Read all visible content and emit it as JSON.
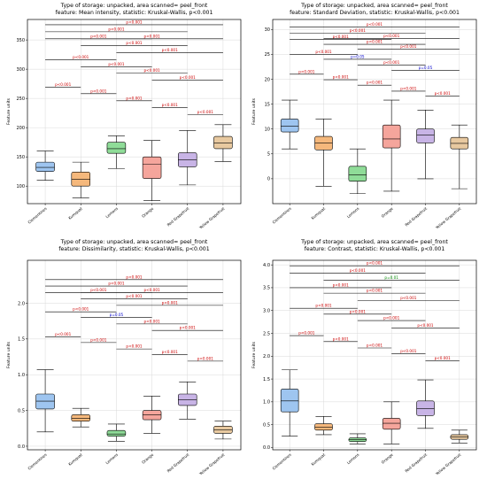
{
  "chart_data": [
    {
      "type": "box",
      "title_line1": "Type of storage: unpacked, area scanned= peel_front",
      "title_line2": "feature: Mean intensity, statistic: Kruskal-Wallis, p<0.001",
      "ylabel": "Feature units",
      "ylim": [
        70,
        385
      ],
      "yticks": [
        100,
        150,
        200,
        250,
        300,
        350
      ],
      "grid": true,
      "categories": [
        "Clementines",
        "Kumquat",
        "Lemons",
        "Orange",
        "Red Grapefruit",
        "Yellow Grapefruit"
      ],
      "colors": [
        "#9ec5f0",
        "#f5b87c",
        "#8fdc98",
        "#f5a59c",
        "#c8b4e6",
        "#e8c9a0"
      ],
      "boxes": [
        {
          "whislo": 110,
          "q1": 125,
          "med": 132,
          "q3": 141,
          "whishi": 160
        },
        {
          "whislo": 80,
          "q1": 100,
          "med": 112,
          "q3": 124,
          "whishi": 141
        },
        {
          "whislo": 130,
          "q1": 156,
          "med": 164,
          "q3": 175,
          "whishi": 186
        },
        {
          "whislo": 75,
          "q1": 113,
          "med": 137,
          "q3": 150,
          "whishi": 178
        },
        {
          "whislo": 102,
          "q1": 133,
          "med": 145,
          "q3": 157,
          "whishi": 195
        },
        {
          "whislo": 142,
          "q1": 164,
          "med": 174,
          "q3": 185,
          "whishi": 205
        }
      ],
      "annotations": [
        {
          "i": 0,
          "j": 1,
          "y": 269,
          "label": "p<0.001",
          "color": "#cc0000"
        },
        {
          "i": 1,
          "j": 2,
          "y": 258,
          "label": "p<0.001",
          "color": "#cc0000"
        },
        {
          "i": 2,
          "j": 3,
          "y": 246,
          "label": "p<0.001",
          "color": "#cc0000"
        },
        {
          "i": 3,
          "j": 4,
          "y": 234,
          "label": "p<0.001",
          "color": "#cc0000"
        },
        {
          "i": 4,
          "j": 5,
          "y": 222,
          "label": "p<0.001",
          "color": "#cc0000"
        },
        {
          "i": 0,
          "j": 2,
          "y": 316,
          "label": "p<0.001",
          "color": "#cc0000"
        },
        {
          "i": 1,
          "j": 3,
          "y": 304,
          "label": "p<0.001",
          "color": "#cc0000"
        },
        {
          "i": 2,
          "j": 4,
          "y": 293,
          "label": "p<0.001",
          "color": "#cc0000"
        },
        {
          "i": 3,
          "j": 5,
          "y": 281,
          "label": "p<0.001",
          "color": "#cc0000"
        },
        {
          "i": 0,
          "j": 3,
          "y": 352,
          "label": "p<0.001",
          "color": "#cc0000"
        },
        {
          "i": 1,
          "j": 4,
          "y": 340,
          "label": "p<0.001",
          "color": "#cc0000"
        },
        {
          "i": 2,
          "j": 5,
          "y": 328,
          "label": "p<0.001",
          "color": "#cc0000"
        },
        {
          "i": 0,
          "j": 4,
          "y": 364,
          "label": "p<0.001",
          "color": "#cc0000"
        },
        {
          "i": 1,
          "j": 5,
          "y": 352,
          "label": "p<0.001",
          "color": "#cc0000"
        },
        {
          "i": 0,
          "j": 5,
          "y": 376,
          "label": "p<0.001",
          "color": "#cc0000"
        }
      ]
    },
    {
      "type": "box",
      "title_line1": "Type of storage: unpacked, area scanned= peel_front",
      "title_line2": "feature: Standard Deviation, statistic: Kruskal-Wallis, p<0.001",
      "ylabel": "Feature units",
      "ylim": [
        -5,
        32
      ],
      "yticks": [
        0,
        5,
        10,
        15,
        20,
        25,
        30
      ],
      "grid": true,
      "categories": [
        "Clementines",
        "Kumquat",
        "Lemons",
        "Orange",
        "Red Grapefruit",
        "Yellow Grapefruit"
      ],
      "colors": [
        "#9ec5f0",
        "#f5b87c",
        "#8fdc98",
        "#f5a59c",
        "#c8b4e6",
        "#e8c9a0"
      ],
      "boxes": [
        {
          "whislo": 6,
          "q1": 9.4,
          "med": 10.6,
          "q3": 12,
          "whishi": 15.8
        },
        {
          "whislo": -1.5,
          "q1": 5.8,
          "med": 7.2,
          "q3": 8.5,
          "whishi": 12
        },
        {
          "whislo": -3,
          "q1": -0.5,
          "med": 0.8,
          "q3": 2.5,
          "whishi": 6
        },
        {
          "whislo": -2.5,
          "q1": 6.2,
          "med": 8,
          "q3": 10.8,
          "whishi": 15.8
        },
        {
          "whislo": 0,
          "q1": 7.2,
          "med": 8.8,
          "q3": 10,
          "whishi": 13.8
        },
        {
          "whislo": -2,
          "q1": 6,
          "med": 7.1,
          "q3": 8.3,
          "whishi": 10.8
        }
      ],
      "annotations": [
        {
          "i": 0,
          "j": 1,
          "y": 21,
          "label": "p<0.001",
          "color": "#cc0000"
        },
        {
          "i": 1,
          "j": 2,
          "y": 19.9,
          "label": "p<0.001",
          "color": "#cc0000"
        },
        {
          "i": 2,
          "j": 3,
          "y": 18.8,
          "label": "p<0.001",
          "color": "#cc0000"
        },
        {
          "i": 3,
          "j": 4,
          "y": 17.6,
          "label": "p<0.001",
          "color": "#cc0000"
        },
        {
          "i": 4,
          "j": 5,
          "y": 16.6,
          "label": "p<0.001",
          "color": "#cc0000"
        },
        {
          "i": 0,
          "j": 2,
          "y": 25,
          "label": "p<0.001",
          "color": "#cc0000"
        },
        {
          "i": 1,
          "j": 3,
          "y": 24,
          "label": "p=0.05",
          "color": "#0000cc"
        },
        {
          "i": 2,
          "j": 4,
          "y": 22.8,
          "label": "p<0.001",
          "color": "#cc0000"
        },
        {
          "i": 3,
          "j": 5,
          "y": 21.8,
          "label": "p=0.05",
          "color": "#0000cc"
        },
        {
          "i": 0,
          "j": 3,
          "y": 28,
          "label": "p<0.001",
          "color": "#cc0000"
        },
        {
          "i": 1,
          "j": 4,
          "y": 27,
          "label": "p<0.001",
          "color": "#cc0000"
        },
        {
          "i": 2,
          "j": 5,
          "y": 26,
          "label": "p<0.001",
          "color": "#cc0000"
        },
        {
          "i": 0,
          "j": 4,
          "y": 29.2,
          "label": "p<0.001",
          "color": "#cc0000"
        },
        {
          "i": 1,
          "j": 5,
          "y": 28.2,
          "label": "p<0.001",
          "color": "#cc0000"
        },
        {
          "i": 0,
          "j": 5,
          "y": 30.5,
          "label": "p<0.001",
          "color": "#cc0000"
        }
      ]
    },
    {
      "type": "box",
      "title_line1": "Type of storage: unpacked, area scanned= peel_front",
      "title_line2": "feature: Dissimilarity, statistic: Kruskal-Wallis, p<0.001",
      "ylabel": "Feature units",
      "ylim": [
        -0.05,
        2.6
      ],
      "yticks": [
        0.0,
        0.5,
        1.0,
        1.5,
        2.0
      ],
      "grid": true,
      "categories": [
        "Clementines",
        "Kumquat",
        "Lemons",
        "Orange",
        "Red Grapefruit",
        "Yellow Grapefruit"
      ],
      "colors": [
        "#9ec5f0",
        "#f5b87c",
        "#8fdc98",
        "#f5a59c",
        "#c8b4e6",
        "#e8c9a0"
      ],
      "boxes": [
        {
          "whislo": 0.2,
          "q1": 0.52,
          "med": 0.63,
          "q3": 0.73,
          "whishi": 1.07
        },
        {
          "whislo": 0.27,
          "q1": 0.35,
          "med": 0.39,
          "q3": 0.44,
          "whishi": 0.53
        },
        {
          "whislo": 0.07,
          "q1": 0.14,
          "med": 0.17,
          "q3": 0.22,
          "whishi": 0.31
        },
        {
          "whislo": 0.18,
          "q1": 0.37,
          "med": 0.44,
          "q3": 0.5,
          "whishi": 0.7
        },
        {
          "whislo": 0.38,
          "q1": 0.57,
          "med": 0.65,
          "q3": 0.73,
          "whishi": 0.9
        },
        {
          "whislo": 0.1,
          "q1": 0.18,
          "med": 0.23,
          "q3": 0.28,
          "whishi": 0.35
        }
      ],
      "annotations": [
        {
          "i": 0,
          "j": 1,
          "y": 1.53,
          "label": "p<0.001",
          "color": "#cc0000"
        },
        {
          "i": 1,
          "j": 2,
          "y": 1.45,
          "label": "p<0.001",
          "color": "#cc0000"
        },
        {
          "i": 2,
          "j": 3,
          "y": 1.36,
          "label": "p<0.001",
          "color": "#cc0000"
        },
        {
          "i": 3,
          "j": 4,
          "y": 1.28,
          "label": "p<0.001",
          "color": "#cc0000"
        },
        {
          "i": 4,
          "j": 5,
          "y": 1.19,
          "label": "p<0.001",
          "color": "#cc0000"
        },
        {
          "i": 0,
          "j": 2,
          "y": 1.88,
          "label": "p<0.001",
          "color": "#cc0000"
        },
        {
          "i": 1,
          "j": 3,
          "y": 1.8,
          "label": "p=0.05",
          "color": "#0000cc"
        },
        {
          "i": 2,
          "j": 4,
          "y": 1.71,
          "label": "p<0.001",
          "color": "#cc0000"
        },
        {
          "i": 3,
          "j": 5,
          "y": 1.62,
          "label": "p<0.001",
          "color": "#cc0000"
        },
        {
          "i": 0,
          "j": 3,
          "y": 2.15,
          "label": "p<0.001",
          "color": "#cc0000"
        },
        {
          "i": 1,
          "j": 4,
          "y": 2.06,
          "label": "p<0.001",
          "color": "#cc0000"
        },
        {
          "i": 2,
          "j": 5,
          "y": 1.97,
          "label": "p<0.001",
          "color": "#cc0000"
        },
        {
          "i": 0,
          "j": 4,
          "y": 2.24,
          "label": "p<0.001",
          "color": "#cc0000"
        },
        {
          "i": 1,
          "j": 5,
          "y": 2.15,
          "label": "p<0.001",
          "color": "#cc0000"
        },
        {
          "i": 0,
          "j": 5,
          "y": 2.33,
          "label": "p<0.001",
          "color": "#cc0000"
        }
      ]
    },
    {
      "type": "box",
      "title_line1": "Type of storage: unpacked, area scanned= peel_front",
      "title_line2": "feature: Contrast, statistic: Kruskal-Wallis, p<0.001",
      "ylabel": "Feature units",
      "ylim": [
        -0.05,
        4.1
      ],
      "yticks": [
        0.0,
        0.5,
        1.0,
        1.5,
        2.0,
        2.5,
        3.0,
        3.5,
        4.0
      ],
      "grid": true,
      "categories": [
        "Clementines",
        "Kumquat",
        "Lemons",
        "Orange",
        "Red Grapefruit",
        "Yellow Grapefruit"
      ],
      "colors": [
        "#9ec5f0",
        "#f5b87c",
        "#8fdc98",
        "#f5a59c",
        "#c8b4e6",
        "#e8c9a0"
      ],
      "boxes": [
        {
          "whislo": 0.25,
          "q1": 0.78,
          "med": 1.02,
          "q3": 1.28,
          "whishi": 1.7
        },
        {
          "whislo": 0.28,
          "q1": 0.38,
          "med": 0.44,
          "q3": 0.52,
          "whishi": 0.68
        },
        {
          "whislo": 0.08,
          "q1": 0.13,
          "med": 0.17,
          "q3": 0.21,
          "whishi": 0.3
        },
        {
          "whislo": 0.08,
          "q1": 0.4,
          "med": 0.53,
          "q3": 0.64,
          "whishi": 1.0
        },
        {
          "whislo": 0.42,
          "q1": 0.7,
          "med": 0.85,
          "q3": 1.02,
          "whishi": 1.48
        },
        {
          "whislo": 0.1,
          "q1": 0.18,
          "med": 0.23,
          "q3": 0.28,
          "whishi": 0.38
        }
      ],
      "annotations": [
        {
          "i": 0,
          "j": 1,
          "y": 2.45,
          "label": "p<0.001",
          "color": "#cc0000"
        },
        {
          "i": 1,
          "j": 2,
          "y": 2.32,
          "label": "p<0.001",
          "color": "#cc0000"
        },
        {
          "i": 2,
          "j": 3,
          "y": 2.18,
          "label": "p<0.001",
          "color": "#cc0000"
        },
        {
          "i": 3,
          "j": 4,
          "y": 2.05,
          "label": "p<0.001",
          "color": "#cc0000"
        },
        {
          "i": 4,
          "j": 5,
          "y": 1.9,
          "label": "p<0.001",
          "color": "#cc0000"
        },
        {
          "i": 0,
          "j": 2,
          "y": 3.05,
          "label": "p<0.001",
          "color": "#cc0000"
        },
        {
          "i": 1,
          "j": 3,
          "y": 2.92,
          "label": "p<0.001",
          "color": "#cc0000"
        },
        {
          "i": 2,
          "j": 4,
          "y": 2.78,
          "label": "p<0.001",
          "color": "#cc0000"
        },
        {
          "i": 3,
          "j": 5,
          "y": 2.62,
          "label": "p<0.001",
          "color": "#cc0000"
        },
        {
          "i": 0,
          "j": 3,
          "y": 3.5,
          "label": "p<0.001",
          "color": "#cc0000"
        },
        {
          "i": 1,
          "j": 4,
          "y": 3.38,
          "label": "p<0.001",
          "color": "#cc0000"
        },
        {
          "i": 2,
          "j": 5,
          "y": 3.22,
          "label": "p<0.001",
          "color": "#cc0000"
        },
        {
          "i": 0,
          "j": 4,
          "y": 3.82,
          "label": "p<0.001",
          "color": "#cc0000"
        },
        {
          "i": 1,
          "j": 5,
          "y": 3.66,
          "label": "p=0.01",
          "color": "#008800"
        },
        {
          "i": 0,
          "j": 5,
          "y": 3.98,
          "label": "p<0.001",
          "color": "#cc0000"
        }
      ]
    }
  ]
}
